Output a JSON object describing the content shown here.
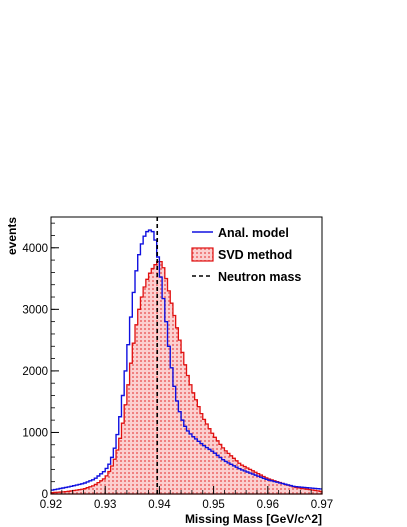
{
  "chart_data": {
    "type": "histogram",
    "xlabel": "Missing Mass [GeV/c^2]",
    "ylabel": "events",
    "xlim": [
      0.92,
      0.97
    ],
    "ylim": [
      0,
      4500
    ],
    "x_ticks": [
      0.92,
      0.93,
      0.94,
      0.95,
      0.96,
      0.97
    ],
    "x_tick_labels": [
      "0.92",
      "0.93",
      "0.94",
      "0.95",
      "0.96",
      "0.97"
    ],
    "y_ticks": [
      0,
      1000,
      2000,
      3000,
      4000
    ],
    "y_tick_labels": [
      "0",
      "1000",
      "2000",
      "3000",
      "4000"
    ],
    "legend_position": "top-right",
    "grid": false,
    "reference_line": {
      "name": "Neutron mass",
      "x": 0.9396,
      "color": "#000000",
      "style": "dashed"
    },
    "series": [
      {
        "name": "Anal. model",
        "style": "step-line",
        "color": "#1010e0",
        "x": [
          0.92,
          0.923,
          0.926,
          0.928,
          0.93,
          0.931,
          0.932,
          0.933,
          0.934,
          0.935,
          0.936,
          0.937,
          0.938,
          0.939,
          0.9395,
          0.94,
          0.941,
          0.942,
          0.943,
          0.944,
          0.945,
          0.946,
          0.948,
          0.95,
          0.952,
          0.955,
          0.96,
          0.965,
          0.97
        ],
        "y": [
          60,
          110,
          170,
          240,
          380,
          520,
          820,
          1400,
          2200,
          3100,
          3800,
          4150,
          4300,
          4250,
          4000,
          3700,
          3000,
          2200,
          1600,
          1250,
          1050,
          950,
          800,
          680,
          540,
          400,
          230,
          120,
          80
        ]
      },
      {
        "name": "SVD method",
        "style": "filled-step",
        "color": "#e01010",
        "fill": "#f9c0c0",
        "x": [
          0.92,
          0.923,
          0.926,
          0.928,
          0.93,
          0.931,
          0.932,
          0.933,
          0.934,
          0.935,
          0.936,
          0.937,
          0.938,
          0.939,
          0.94,
          0.9405,
          0.941,
          0.942,
          0.943,
          0.944,
          0.945,
          0.946,
          0.948,
          0.95,
          0.952,
          0.955,
          0.96,
          0.965,
          0.97
        ],
        "y": [
          20,
          40,
          80,
          140,
          260,
          400,
          620,
          1000,
          1600,
          2300,
          2900,
          3300,
          3550,
          3700,
          3800,
          3750,
          3600,
          3200,
          2800,
          2400,
          2000,
          1700,
          1250,
          950,
          720,
          480,
          250,
          110,
          40
        ]
      }
    ]
  }
}
